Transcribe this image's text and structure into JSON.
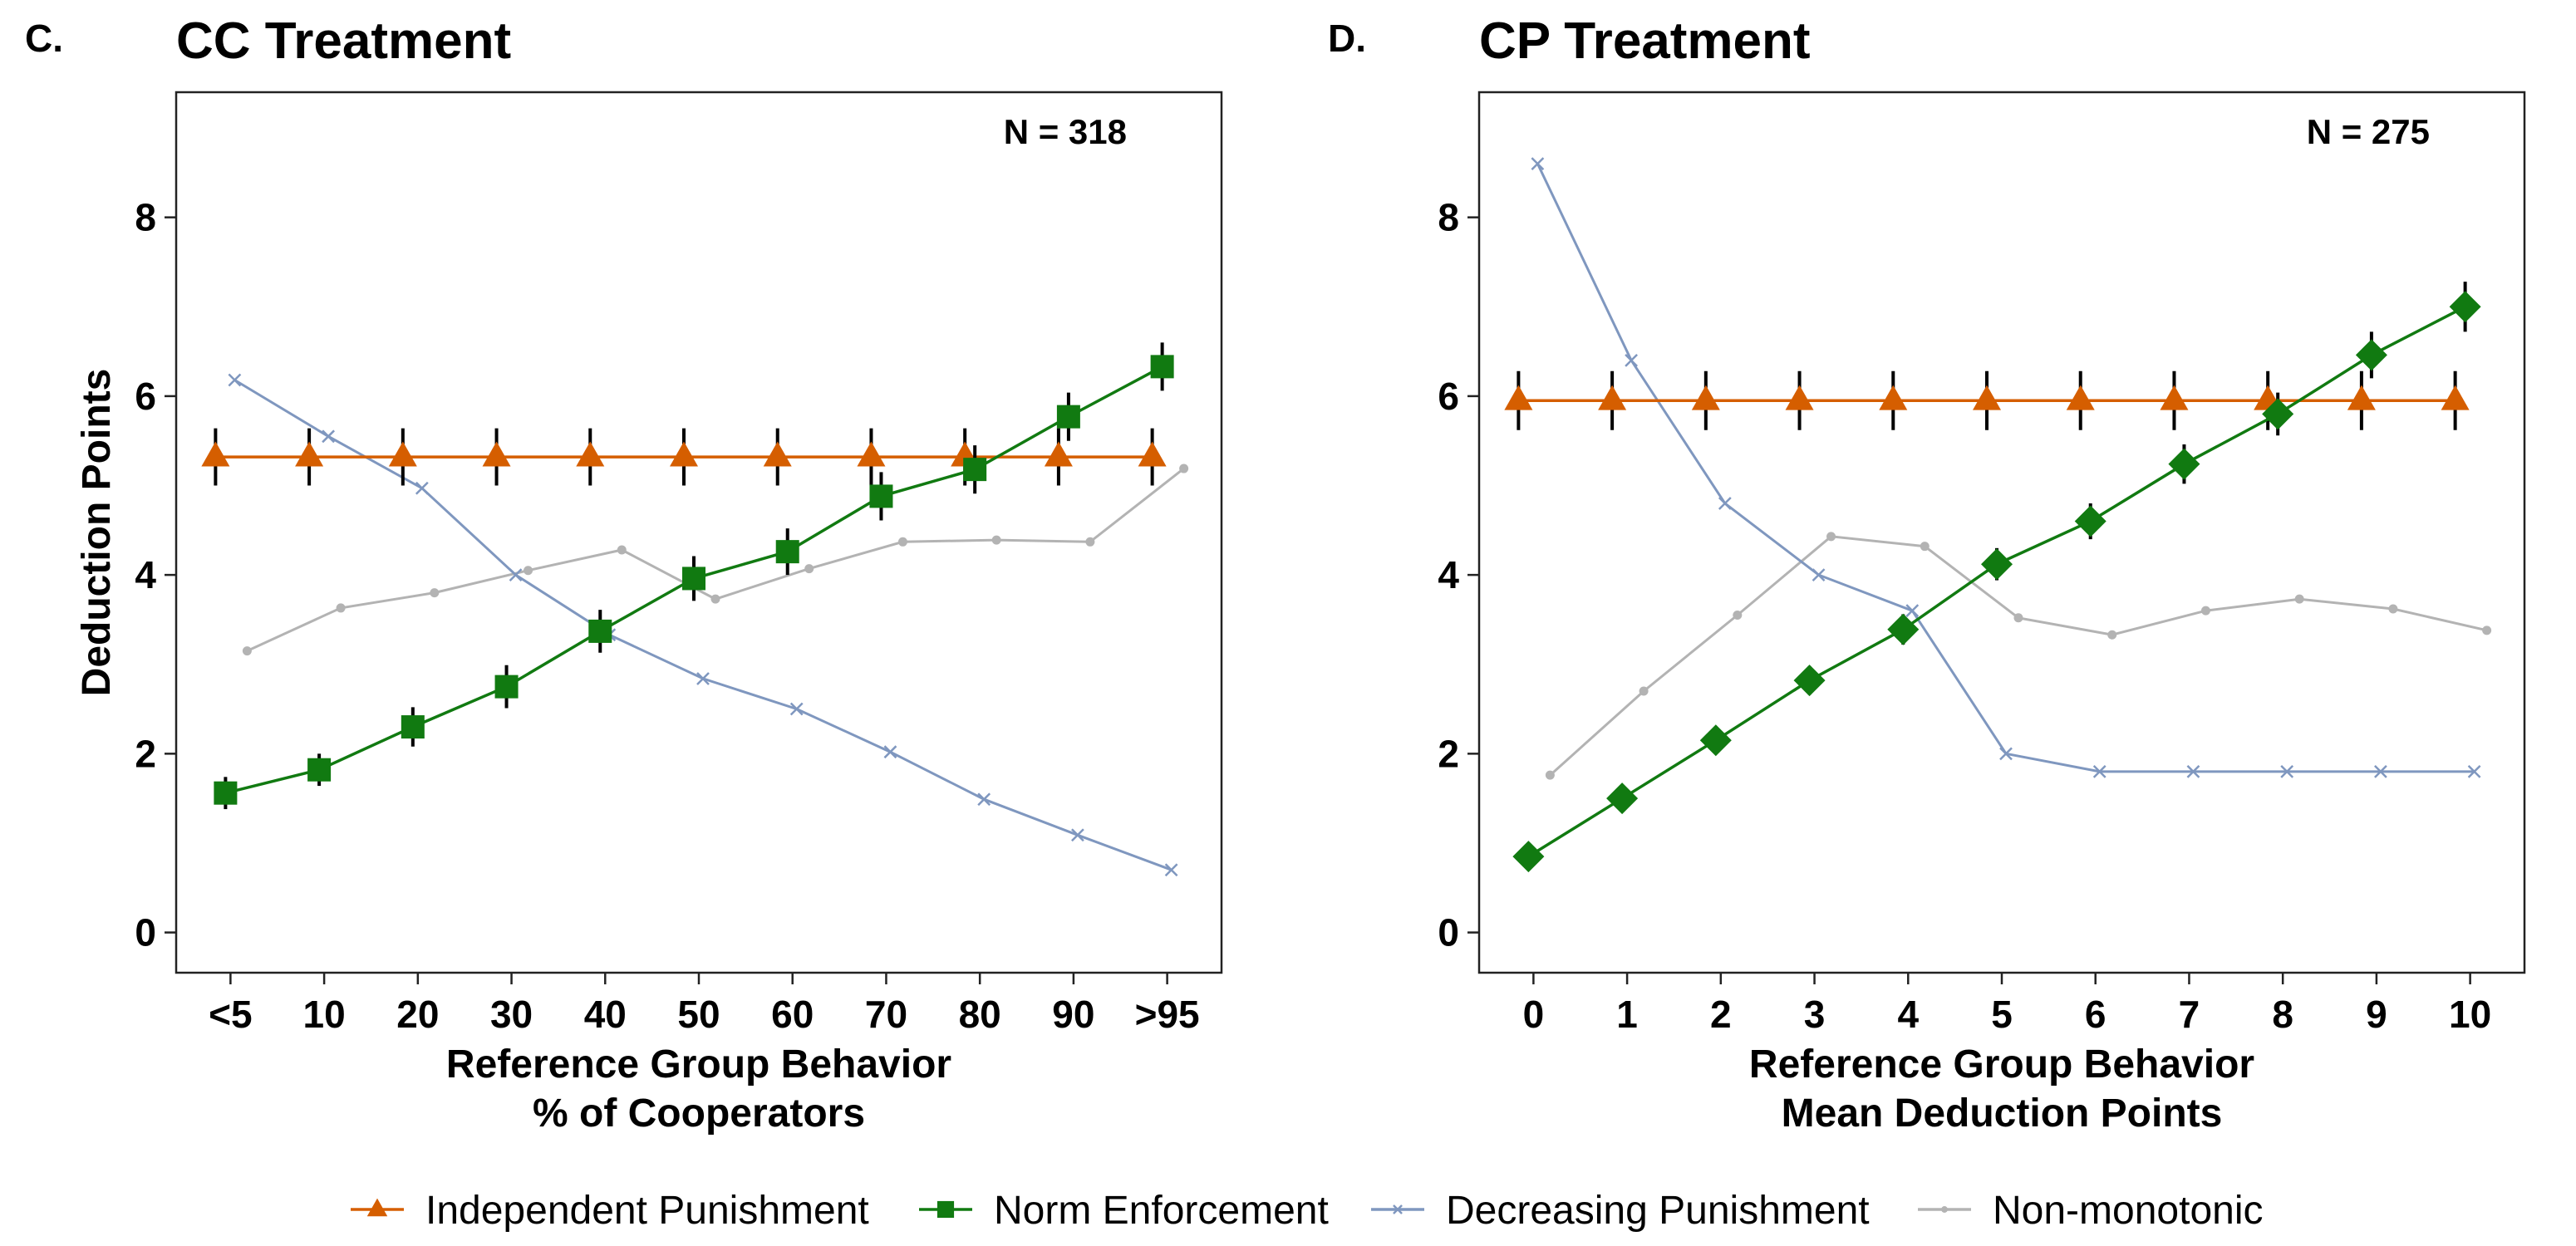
{
  "legend": [
    {
      "key": "independent",
      "label": "Independent Punishment",
      "color": "#d55e00",
      "marker": "triangle"
    },
    {
      "key": "norm",
      "label": "Norm Enforcement",
      "color": "#117a11",
      "marker": "square"
    },
    {
      "key": "decreasing",
      "label": "Decreasing Punishment",
      "color": "#7f97bf",
      "marker": "cross"
    },
    {
      "key": "nonmono",
      "label": "Non-monotonic",
      "color": "#b3b3b3",
      "marker": "dot"
    }
  ],
  "chart_data": [
    {
      "type": "line",
      "panel_letter": "C.",
      "title": "CC Treatment",
      "n_label": "N = 318",
      "ylabel": "Deduction Points",
      "xlabel": [
        "Reference Group Behavior",
        "% of Cooperators"
      ],
      "categories": [
        "<5",
        "10",
        "20",
        "30",
        "40",
        "50",
        "60",
        "70",
        "80",
        "90",
        ">95"
      ],
      "ylim": [
        -0.45,
        9.4
      ],
      "yticks": [
        0,
        2,
        4,
        6,
        8
      ],
      "ytick_labels": [
        "0",
        "2",
        "4",
        "6",
        "8"
      ],
      "series": [
        {
          "key": "independent",
          "values": [
            5.32,
            5.32,
            5.32,
            5.32,
            5.32,
            5.32,
            5.32,
            5.32,
            5.32,
            5.32,
            5.32
          ],
          "error": [
            0.32,
            0.32,
            0.32,
            0.32,
            0.32,
            0.32,
            0.32,
            0.32,
            0.32,
            0.32,
            0.32
          ]
        },
        {
          "key": "norm",
          "values": [
            1.56,
            1.82,
            2.3,
            2.75,
            3.37,
            3.96,
            4.26,
            4.88,
            5.18,
            5.77,
            6.33
          ],
          "error": [
            0.18,
            0.18,
            0.22,
            0.24,
            0.24,
            0.25,
            0.26,
            0.27,
            0.27,
            0.27,
            0.27
          ]
        },
        {
          "key": "decreasing",
          "values": [
            6.18,
            5.55,
            4.97,
            4.0,
            3.33,
            2.84,
            2.5,
            2.02,
            1.49,
            1.09,
            0.7
          ]
        },
        {
          "key": "nonmono",
          "values": [
            3.15,
            3.63,
            3.8,
            4.05,
            4.28,
            3.73,
            4.07,
            4.37,
            4.39,
            4.37,
            5.19
          ]
        }
      ]
    },
    {
      "type": "line",
      "panel_letter": "D.",
      "title": "CP Treatment",
      "n_label": "N = 275",
      "ylabel": "",
      "xlabel": [
        "Reference Group Behavior",
        "Mean Deduction Points"
      ],
      "categories": [
        "0",
        "1",
        "2",
        "3",
        "4",
        "5",
        "6",
        "7",
        "8",
        "9",
        "10"
      ],
      "ylim": [
        -0.45,
        9.4
      ],
      "yticks": [
        0,
        2,
        4,
        6,
        8
      ],
      "ytick_labels": [
        "0",
        "2",
        "4",
        "6",
        "8"
      ],
      "series": [
        {
          "key": "independent",
          "values": [
            5.95,
            5.95,
            5.95,
            5.95,
            5.95,
            5.95,
            5.95,
            5.95,
            5.95,
            5.95,
            5.95
          ],
          "error": [
            0.33,
            0.33,
            0.33,
            0.33,
            0.33,
            0.33,
            0.33,
            0.33,
            0.33,
            0.33,
            0.33
          ]
        },
        {
          "key": "norm",
          "values": [
            0.85,
            1.5,
            2.15,
            2.82,
            3.39,
            4.12,
            4.6,
            5.24,
            5.8,
            6.46,
            7.0
          ],
          "error": [
            0.12,
            0.13,
            0.14,
            0.16,
            0.17,
            0.18,
            0.2,
            0.22,
            0.24,
            0.26,
            0.28
          ]
        },
        {
          "key": "decreasing",
          "values": [
            8.6,
            6.4,
            4.8,
            4.0,
            3.6,
            2.0,
            1.8,
            1.8,
            1.8,
            1.8,
            1.8
          ]
        },
        {
          "key": "nonmono",
          "values": [
            1.76,
            2.7,
            3.55,
            4.43,
            4.32,
            3.52,
            3.33,
            3.6,
            3.73,
            3.62,
            3.38
          ]
        }
      ]
    }
  ]
}
